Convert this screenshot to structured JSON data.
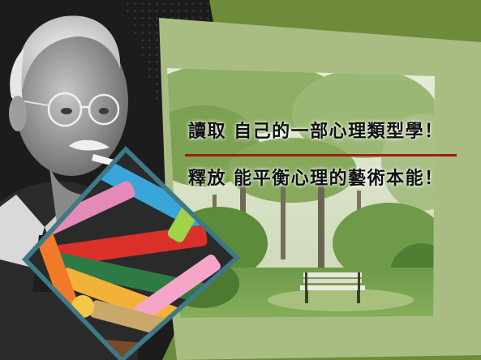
{
  "headlines": {
    "line1": "讀取 自己的一部心理類型學！",
    "line2": "釋放 能平衡心理的藝術本能！"
  },
  "colors": {
    "background": "#6e8a3b",
    "dark_panel": "#1c1c1c",
    "frame": "#a9bd82",
    "divider": "#a01c10",
    "text": "#111111"
  },
  "images": {
    "portrait": "elderly-man-portrait",
    "park": "park-with-trees-and-bench",
    "crayons": "colored-crayons-pile"
  }
}
